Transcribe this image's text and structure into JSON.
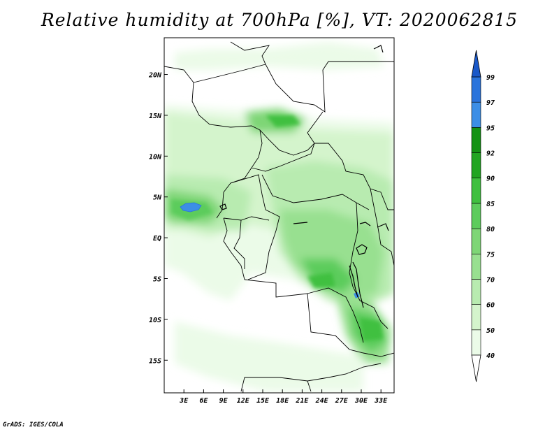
{
  "title": "Relative humidity at 700hPa [%], VT: 2020062815",
  "credit": "GrADS: IGES/COLA",
  "map": {
    "lon_ticks": [
      "3E",
      "6E",
      "9E",
      "12E",
      "15E",
      "18E",
      "21E",
      "24E",
      "27E",
      "30E",
      "33E"
    ],
    "lat_ticks": [
      "20N",
      "15N",
      "10N",
      "5N",
      "EQ",
      "5S",
      "10S",
      "15S"
    ],
    "lon_range": [
      0,
      35
    ],
    "lat_range": [
      -19,
      24.5
    ]
  },
  "colorbar": {
    "labels": [
      "40",
      "50",
      "60",
      "70",
      "75",
      "80",
      "85",
      "90",
      "92",
      "95",
      "97",
      "99"
    ],
    "colors": [
      "#ffffff",
      "#ebfbe8",
      "#d4f4cc",
      "#b8ebb0",
      "#98e090",
      "#7ed676",
      "#5ccc5c",
      "#3fc03f",
      "#22a522",
      "#149214",
      "#3c8ee6",
      "#2a74dc",
      "#1a58c8"
    ]
  }
}
